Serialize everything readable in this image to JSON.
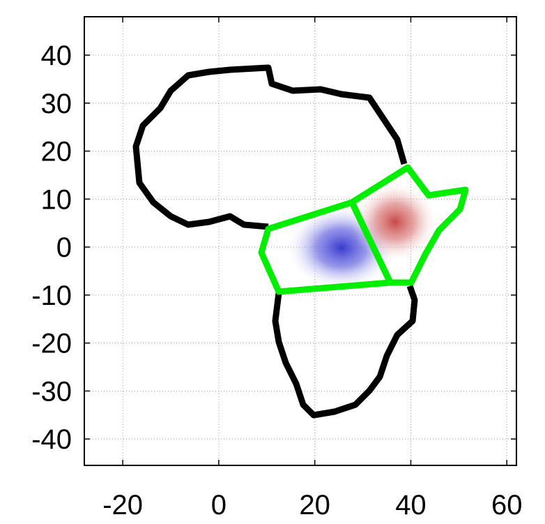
{
  "chart_data": {
    "type": "map",
    "xlim": [
      -28,
      62
    ],
    "ylim": [
      -45.5,
      48
    ],
    "xticks": [
      -20,
      0,
      20,
      40,
      60
    ],
    "yticks": [
      -40,
      -30,
      -20,
      -10,
      0,
      10,
      20,
      30,
      40
    ],
    "grid": true
  }
}
